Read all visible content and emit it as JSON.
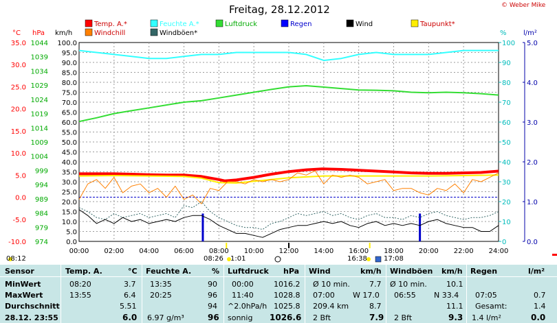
{
  "page": {
    "title": "Freitag, 28.12.2012",
    "credit": "© Weber Mike"
  },
  "legend": [
    {
      "label": "Temp. A.*",
      "color": "#ff0000"
    },
    {
      "label": "Feuchte A.*",
      "color": "#33ffff"
    },
    {
      "label": "Luftdruck",
      "color": "#33dd33"
    },
    {
      "label": "Regen",
      "color": "#0000ff"
    },
    {
      "label": "Wind",
      "color": "#000000"
    },
    {
      "label": "Taupunkt*",
      "color": "#ffee00"
    },
    {
      "label": "Windchill",
      "color": "#ff8000"
    },
    {
      "label": "Windböen*",
      "color": "#336666"
    }
  ],
  "chart_data": {
    "type": "line",
    "x_ticks": [
      "00:00",
      "02:00",
      "04:00",
      "06:00",
      "08:00",
      "10:00",
      "12:00",
      "14:00",
      "16:00",
      "18:00",
      "20:00",
      "22:00",
      "24:00"
    ],
    "axes": {
      "temp": {
        "unit": "°C",
        "ylim": [
          -10,
          35
        ],
        "ticks": [
          "35.0",
          "30.0",
          "25.0",
          "20.0",
          "15.0",
          "10.0",
          "5.0",
          "0.0",
          "-5.0",
          "-10.0"
        ],
        "color": "#ff0000"
      },
      "pressure": {
        "unit": "hPa",
        "ylim": [
          974,
          1044
        ],
        "ticks": [
          "1044",
          "1039",
          "1034",
          "1029",
          "1024",
          "1019",
          "1014",
          "1009",
          "1004",
          "999",
          "994",
          "989",
          "984",
          "979",
          "974"
        ],
        "color": "#00aa00"
      },
      "wind": {
        "unit": "km/h",
        "ylim": [
          0,
          100
        ],
        "ticks": [
          "100.0",
          "95.0",
          "90.0",
          "85.0",
          "80.0",
          "75.0",
          "70.0",
          "65.0",
          "60.0",
          "55.0",
          "50.0",
          "45.0",
          "40.0",
          "35.0",
          "30.0",
          "25.0",
          "20.0",
          "15.0",
          "10.0",
          "5.0",
          "0.0"
        ],
        "color": "#000000"
      },
      "humidity": {
        "unit": "%",
        "ylim": [
          0,
          100
        ],
        "ticks": [
          "100",
          "90",
          "80",
          "70",
          "60",
          "50",
          "40",
          "30",
          "20",
          "10",
          "0"
        ],
        "color": "#00bbbb"
      },
      "rain": {
        "unit": "l/m²",
        "ylim": [
          0,
          5
        ],
        "ticks": [
          "5.0",
          "4.0",
          "3.0",
          "2.0",
          "1.0",
          "0.0"
        ],
        "color": "#0000aa"
      }
    },
    "series": [
      {
        "name": "Temp. A.*",
        "axis": "temp",
        "color": "#ff0000",
        "width": 4,
        "x": [
          0,
          1,
          2,
          3,
          4,
          5,
          6,
          7,
          8,
          8.33,
          9,
          10,
          11,
          12,
          13,
          13.92,
          15,
          16,
          17,
          18,
          19,
          20,
          21,
          22,
          23,
          24
        ],
        "y": [
          5.3,
          5.3,
          5.3,
          5.2,
          5.1,
          5.0,
          5.0,
          4.7,
          4.0,
          3.7,
          3.9,
          4.5,
          5.2,
          5.8,
          6.2,
          6.4,
          6.3,
          6.1,
          5.9,
          5.7,
          5.5,
          5.4,
          5.4,
          5.5,
          5.6,
          5.9
        ]
      },
      {
        "name": "Feuchte A.*",
        "axis": "humidity",
        "color": "#33ffff",
        "width": 2,
        "x": [
          0,
          1,
          2,
          3,
          4,
          5,
          6,
          7,
          8,
          9,
          10,
          11,
          12,
          13,
          14,
          15,
          16,
          17,
          18,
          19,
          20,
          21,
          22,
          23,
          24
        ],
        "y": [
          96,
          95,
          94,
          93,
          92,
          92,
          93,
          94,
          94,
          95,
          95,
          95,
          95,
          94,
          91,
          92,
          94,
          95,
          94,
          94,
          94,
          95,
          96,
          96,
          96
        ]
      },
      {
        "name": "Luftdruck",
        "axis": "pressure",
        "color": "#33dd33",
        "width": 2,
        "x": [
          0,
          1,
          2,
          3,
          4,
          5,
          6,
          7,
          8,
          9,
          10,
          11,
          12,
          13,
          14,
          15,
          16,
          17,
          18,
          19,
          20,
          21,
          22,
          23,
          24
        ],
        "y": [
          1016.2,
          1017.5,
          1019,
          1020,
          1021,
          1022,
          1023,
          1023.5,
          1024.5,
          1025.5,
          1026.5,
          1027.5,
          1028.4,
          1028.8,
          1028.3,
          1027.8,
          1027.3,
          1027.2,
          1027,
          1026.5,
          1026.3,
          1026.5,
          1026.3,
          1026,
          1025.5
        ]
      },
      {
        "name": "Taupunkt*",
        "axis": "temp",
        "color": "#ffee00",
        "width": 2,
        "x": [
          0,
          2,
          4,
          6,
          7,
          8,
          9,
          10,
          12,
          14,
          16,
          18,
          20,
          22,
          24
        ],
        "y": [
          4.8,
          4.9,
          4.8,
          4.7,
          4.3,
          3.3,
          3.2,
          3.6,
          4.4,
          4.8,
          4.8,
          4.8,
          4.8,
          4.9,
          5.0
        ]
      },
      {
        "name": "Windchill",
        "axis": "temp",
        "color": "#ff8000",
        "width": 1,
        "x": [
          0,
          0.5,
          1,
          1.5,
          2,
          2.5,
          3,
          3.5,
          4,
          4.5,
          5,
          5.5,
          6,
          6.5,
          7,
          7.5,
          8,
          8.5,
          9,
          9.5,
          10,
          10.5,
          11,
          11.5,
          12,
          12.5,
          13,
          13.5,
          14,
          14.5,
          15,
          15.5,
          16,
          16.5,
          17,
          17.5,
          18,
          18.5,
          19,
          19.5,
          20,
          20.5,
          21,
          21.5,
          22,
          22.5,
          23,
          23.5,
          24
        ],
        "y": [
          -0.5,
          3,
          4,
          2,
          4.5,
          1,
          2.5,
          3,
          1,
          2,
          0,
          2.5,
          -0.5,
          0.5,
          -1.5,
          2,
          1.5,
          3.5,
          3.5,
          3,
          4,
          3.5,
          4,
          3.5,
          4,
          5.5,
          5,
          6,
          3,
          5,
          4.5,
          5,
          4.5,
          3,
          3.5,
          4,
          1.5,
          2,
          2,
          1,
          0.5,
          2,
          1.5,
          3,
          1,
          4,
          3.5,
          4.5,
          5.5
        ]
      },
      {
        "name": "Windböen*",
        "axis": "wind",
        "color": "#336666",
        "width": 1,
        "dashed": true,
        "x": [
          0,
          0.5,
          1,
          1.5,
          2,
          2.5,
          3,
          3.5,
          4,
          4.5,
          5,
          5.5,
          6,
          6.5,
          7,
          7.5,
          8,
          8.5,
          9,
          9.5,
          10,
          10.5,
          11,
          11.5,
          12,
          12.5,
          13,
          13.5,
          14,
          14.5,
          15,
          15.5,
          16,
          16.5,
          17,
          17.5,
          18,
          18.5,
          19,
          19.5,
          20,
          20.5,
          21,
          21.5,
          22,
          22.5,
          23,
          23.5,
          24
        ],
        "y": [
          17,
          15,
          12,
          11,
          14,
          12,
          13,
          14,
          12,
          13,
          14,
          12,
          18,
          17,
          20,
          15,
          12,
          10,
          8,
          7,
          7,
          6,
          9,
          10,
          12,
          14,
          13,
          14,
          15,
          13,
          14,
          12,
          11,
          13,
          14,
          12,
          12,
          11,
          13,
          12,
          14,
          15,
          13,
          12,
          11,
          12,
          12,
          13,
          15
        ]
      },
      {
        "name": "Wind",
        "axis": "wind",
        "color": "#000000",
        "width": 1,
        "x": [
          0,
          0.5,
          1,
          1.5,
          2,
          2.5,
          3,
          3.5,
          4,
          4.5,
          5,
          5.5,
          6,
          6.5,
          7,
          7.5,
          8,
          8.5,
          9,
          9.5,
          10,
          10.5,
          11,
          11.5,
          12,
          12.5,
          13,
          13.5,
          14,
          14.5,
          15,
          15.5,
          16,
          16.5,
          17,
          17.5,
          18,
          18.5,
          19,
          19.5,
          20,
          20.5,
          21,
          21.5,
          22,
          22.5,
          23,
          23.5,
          24
        ],
        "y": [
          16,
          13,
          9,
          11,
          9,
          12,
          10,
          11,
          9,
          10,
          11,
          10,
          12,
          13,
          13,
          11,
          8,
          6,
          4,
          4,
          3,
          2,
          4,
          6,
          7,
          8,
          8,
          9,
          10,
          9,
          10,
          8,
          7,
          9,
          10,
          8,
          9,
          8,
          9,
          8,
          10,
          11,
          9,
          8,
          7,
          7,
          5,
          5,
          8
        ]
      }
    ],
    "rain_bars": {
      "axis": "rain",
      "color": "#0000cc",
      "x": [
        7.08,
        19.5
      ],
      "y": [
        0.7,
        0.7
      ]
    },
    "markers": [
      {
        "x": 7.08,
        "color": "#0000cc"
      },
      {
        "x": 19.5,
        "color": "#0000cc"
      }
    ],
    "ref_line": {
      "axis": "temp",
      "y": 0,
      "color": "#0000cc"
    }
  },
  "below_axis": {
    "left_time": "08:12",
    "sun_a": "08:26",
    "sun_b": "1:01",
    "sun_c": "16:38",
    "sun_d": "17:08"
  },
  "table": {
    "headers": {
      "sensor": "Sensor",
      "temp": "Temp. A.",
      "temp_u": "°C",
      "hum": "Feuchte A.",
      "hum_u": "%",
      "press": "Luftdruck",
      "press_u": "hPa",
      "wind": "Wind",
      "wind_u": "km/h",
      "gust": "Windböen",
      "gust_u": "km/h",
      "rain": "Regen",
      "rain_u": "l/m²"
    },
    "rows": {
      "min": {
        "label": "MinWert",
        "temp_t": "08:20",
        "temp_v": "3.7",
        "hum_t": "13:35",
        "hum_v": "90",
        "press_t": "00:00",
        "press_v": "1016.2",
        "wind_t": "Ø 10 min.",
        "wind_v": "7.7",
        "gust_t": "Ø 10 min.",
        "gust_v": "10.1",
        "rain_t": "",
        "rain_v": ""
      },
      "max": {
        "label": "MaxWert",
        "temp_t": "13:55",
        "temp_v": "6.4",
        "hum_t": "20:25",
        "hum_v": "96",
        "press_t": "11:40",
        "press_v": "1028.8",
        "wind_t": "07:00",
        "wind_m": "W 17.0",
        "gust_t": "06:55",
        "gust_m": "N 33.4",
        "rain_t": "07:05",
        "rain_v": "0.7"
      },
      "avg": {
        "label": "Durchschnitt",
        "temp_v": "5.51",
        "hum_v": "94",
        "press_t": "^2.0hPa/h",
        "press_v": "1025.8",
        "wind_t": "209.4 km",
        "wind_v": "8.7",
        "gust_v": "11.1",
        "rain_t": "Gesamt:",
        "rain_v": "1.4"
      },
      "cur": {
        "label": "28.12. 23:55",
        "temp_v": "6.0",
        "hum_t": "6.97 g/m³",
        "hum_v": "96",
        "press_t": "sonnig",
        "press_v": "1026.6",
        "wind_t": "2 Bft",
        "wind_v": "7.9",
        "gust_t": "2 Bft",
        "gust_v": "9.3",
        "rain_t": "1.4 l/m²",
        "rain_v": "0.0"
      }
    }
  }
}
